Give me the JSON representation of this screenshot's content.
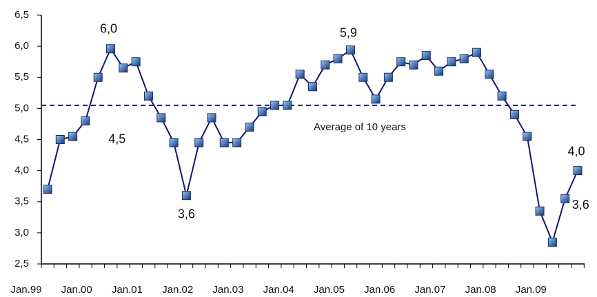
{
  "chart_data": {
    "type": "line",
    "categories": [
      "Jan.99",
      null,
      null,
      null,
      "Jan.00",
      null,
      null,
      null,
      "Jan.01",
      null,
      null,
      null,
      "Jan.02",
      null,
      null,
      null,
      "Jan.03",
      null,
      null,
      null,
      "Jan.04",
      null,
      null,
      null,
      "Jan.05",
      null,
      null,
      null,
      "Jan.06",
      null,
      null,
      null,
      "Jan.07",
      null,
      null,
      null,
      "Jan.08",
      null,
      null,
      null,
      "Jan.09",
      null,
      null
    ],
    "values": [
      3.7,
      4.5,
      4.55,
      4.8,
      5.5,
      5.96,
      5.65,
      5.75,
      5.2,
      4.85,
      4.45,
      3.6,
      4.45,
      4.85,
      4.45,
      4.45,
      4.7,
      4.95,
      5.05,
      5.05,
      5.55,
      5.35,
      5.7,
      5.8,
      5.94,
      5.5,
      5.15,
      5.5,
      5.75,
      5.7,
      5.85,
      5.6,
      5.75,
      5.8,
      5.9,
      5.55,
      5.2,
      4.9,
      4.55,
      3.35,
      2.85,
      3.55,
      4.0
    ],
    "value_labels": [
      null,
      "4,5",
      null,
      null,
      null,
      "6,0",
      null,
      null,
      null,
      null,
      null,
      "3,6",
      null,
      null,
      null,
      null,
      null,
      null,
      null,
      null,
      null,
      null,
      null,
      null,
      "5,9",
      null,
      null,
      null,
      null,
      null,
      null,
      null,
      null,
      null,
      null,
      null,
      null,
      null,
      null,
      null,
      null,
      "3,6",
      "4,0"
    ],
    "color": "#14146e",
    "marker_color": "#4f7fc0",
    "ylim": [
      2.5,
      6.5
    ],
    "yticks": [
      {
        "value": 2.5,
        "label": "2,5"
      },
      {
        "value": 3.0,
        "label": "3,0"
      },
      {
        "value": 3.5,
        "label": "3,5"
      },
      {
        "value": 4.0,
        "label": "4,0"
      },
      {
        "value": 4.5,
        "label": "4,5"
      },
      {
        "value": 5.0,
        "label": "5,0"
      },
      {
        "value": 5.5,
        "label": "5,5"
      },
      {
        "value": 6.0,
        "label": "6,0"
      },
      {
        "value": 6.5,
        "label": "6,5"
      }
    ],
    "average": {
      "value": 5.05,
      "label": "Average of 10 years"
    }
  }
}
